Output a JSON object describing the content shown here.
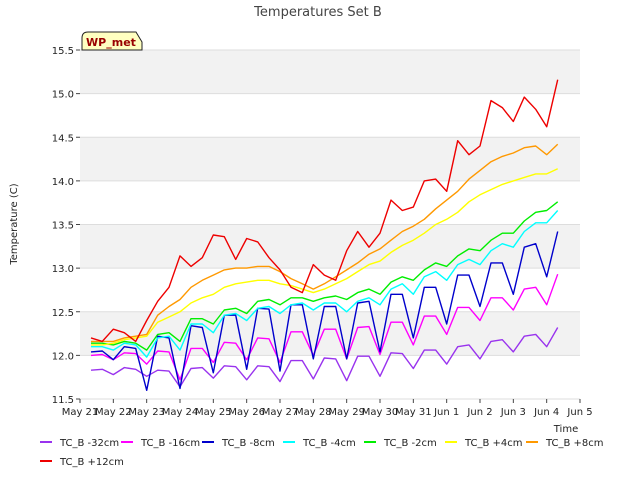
{
  "chart_data": {
    "type": "line",
    "title": "Temperatures Set B",
    "xlabel": "Time",
    "ylabel": "Temperature (C)",
    "badge": "WP_met",
    "ylim": [
      11.5,
      15.5
    ],
    "yticks": [
      11.5,
      12.0,
      12.5,
      13.0,
      13.5,
      14.0,
      14.5,
      15.0,
      15.5
    ],
    "xlim": [
      0,
      15
    ],
    "xticks": [
      {
        "pos": 0,
        "label": "May 21"
      },
      {
        "pos": 1,
        "label": "May 22"
      },
      {
        "pos": 2,
        "label": "May 23"
      },
      {
        "pos": 3,
        "label": "May 24"
      },
      {
        "pos": 4,
        "label": "May 25"
      },
      {
        "pos": 5,
        "label": "May 26"
      },
      {
        "pos": 6,
        "label": "May 27"
      },
      {
        "pos": 7,
        "label": "May 28"
      },
      {
        "pos": 8,
        "label": "May 29"
      },
      {
        "pos": 9,
        "label": "May 30"
      },
      {
        "pos": 10,
        "label": "May 31"
      },
      {
        "pos": 11,
        "label": "Jun 1"
      },
      {
        "pos": 12,
        "label": "Jun 2"
      },
      {
        "pos": 13,
        "label": "Jun 3"
      },
      {
        "pos": 14,
        "label": "Jun 4"
      },
      {
        "pos": 15,
        "label": "Jun 5"
      }
    ],
    "grid": true,
    "legend_position": "bottom",
    "x": [
      0.33,
      0.67,
      1.0,
      1.33,
      1.67,
      2.0,
      2.33,
      2.67,
      3.0,
      3.33,
      3.67,
      4.0,
      4.33,
      4.67,
      5.0,
      5.33,
      5.67,
      6.0,
      6.33,
      6.67,
      7.0,
      7.33,
      7.67,
      8.0,
      8.33,
      8.67,
      9.0,
      9.33,
      9.67,
      10.0,
      10.33,
      10.67,
      11.0,
      11.33,
      11.67,
      12.0,
      12.33,
      12.67,
      13.0,
      13.33,
      13.67,
      14.0,
      14.33
    ],
    "series": [
      {
        "name": "TC_B -32cm",
        "color": "#9933ee",
        "values": [
          11.83,
          11.84,
          11.78,
          11.86,
          11.84,
          11.76,
          11.83,
          11.82,
          11.64,
          11.85,
          11.86,
          11.74,
          11.88,
          11.87,
          11.72,
          11.88,
          11.87,
          11.7,
          11.94,
          11.94,
          11.73,
          11.97,
          11.96,
          11.71,
          11.99,
          11.99,
          11.76,
          12.03,
          12.02,
          11.85,
          12.06,
          12.06,
          11.9,
          12.1,
          12.12,
          11.96,
          12.16,
          12.18,
          12.04,
          12.22,
          12.24,
          12.1,
          12.32
        ]
      },
      {
        "name": "TC_B -16cm",
        "color": "#ff00ff",
        "values": [
          12.0,
          12.01,
          11.95,
          12.03,
          12.02,
          11.9,
          12.05,
          12.04,
          11.72,
          12.08,
          12.08,
          11.92,
          12.15,
          12.14,
          11.95,
          12.2,
          12.19,
          11.92,
          12.27,
          12.27,
          12.0,
          12.3,
          12.3,
          11.96,
          12.32,
          12.33,
          12.01,
          12.38,
          12.38,
          12.12,
          12.45,
          12.45,
          12.24,
          12.55,
          12.55,
          12.4,
          12.66,
          12.66,
          12.52,
          12.76,
          12.78,
          12.58,
          12.93
        ]
      },
      {
        "name": "TC_B -8cm",
        "color": "#0000cc",
        "values": [
          12.04,
          12.05,
          11.95,
          12.1,
          12.08,
          11.6,
          12.22,
          12.2,
          11.62,
          12.34,
          12.32,
          11.8,
          12.46,
          12.46,
          11.84,
          12.54,
          12.53,
          11.82,
          12.58,
          12.58,
          11.96,
          12.56,
          12.56,
          11.96,
          12.6,
          12.62,
          12.04,
          12.7,
          12.7,
          12.2,
          12.78,
          12.78,
          12.36,
          12.92,
          12.92,
          12.56,
          13.06,
          13.06,
          12.7,
          13.24,
          13.28,
          12.9,
          13.42
        ]
      },
      {
        "name": "TC_B -4cm",
        "color": "#00ffff",
        "values": [
          12.1,
          12.1,
          12.06,
          12.14,
          12.12,
          11.98,
          12.2,
          12.22,
          12.06,
          12.36,
          12.36,
          12.26,
          12.46,
          12.48,
          12.4,
          12.54,
          12.56,
          12.48,
          12.58,
          12.6,
          12.52,
          12.6,
          12.6,
          12.5,
          12.62,
          12.66,
          12.58,
          12.76,
          12.82,
          12.7,
          12.9,
          12.96,
          12.86,
          13.04,
          13.1,
          13.04,
          13.2,
          13.28,
          13.24,
          13.42,
          13.52,
          13.52,
          13.66
        ]
      },
      {
        "name": "TC_B -2cm",
        "color": "#00ee00",
        "values": [
          12.14,
          12.14,
          12.12,
          12.16,
          12.14,
          12.06,
          12.24,
          12.26,
          12.16,
          12.42,
          12.42,
          12.36,
          12.52,
          12.54,
          12.48,
          12.62,
          12.64,
          12.58,
          12.66,
          12.66,
          12.62,
          12.66,
          12.68,
          12.64,
          12.72,
          12.76,
          12.7,
          12.84,
          12.9,
          12.86,
          12.98,
          13.06,
          13.02,
          13.14,
          13.22,
          13.2,
          13.32,
          13.4,
          13.4,
          13.54,
          13.64,
          13.66,
          13.76
        ]
      },
      {
        "name": "TC_B +4cm",
        "color": "#ffff00",
        "values": [
          12.12,
          12.12,
          12.14,
          12.18,
          12.2,
          12.22,
          12.38,
          12.44,
          12.5,
          12.6,
          12.66,
          12.7,
          12.78,
          12.82,
          12.84,
          12.86,
          12.86,
          12.82,
          12.8,
          12.76,
          12.72,
          12.76,
          12.82,
          12.88,
          12.96,
          13.04,
          13.08,
          13.18,
          13.26,
          13.32,
          13.4,
          13.5,
          13.56,
          13.64,
          13.76,
          13.84,
          13.9,
          13.96,
          14.0,
          14.04,
          14.08,
          14.08,
          14.14
        ]
      },
      {
        "name": "TC_B +8cm",
        "color": "#ff9900",
        "values": [
          12.16,
          12.16,
          12.16,
          12.2,
          12.22,
          12.24,
          12.46,
          12.56,
          12.64,
          12.78,
          12.86,
          12.92,
          12.98,
          13.0,
          13.0,
          13.02,
          13.02,
          12.96,
          12.88,
          12.82,
          12.76,
          12.82,
          12.9,
          12.98,
          13.06,
          13.16,
          13.22,
          13.32,
          13.42,
          13.48,
          13.56,
          13.68,
          13.78,
          13.88,
          14.02,
          14.12,
          14.22,
          14.28,
          14.32,
          14.38,
          14.4,
          14.3,
          14.42
        ]
      },
      {
        "name": "TC_B +12cm",
        "color": "#ee0000",
        "values": [
          12.2,
          12.16,
          12.3,
          12.26,
          12.16,
          12.4,
          12.62,
          12.78,
          13.14,
          13.02,
          13.12,
          13.38,
          13.36,
          13.1,
          13.34,
          13.3,
          13.12,
          12.98,
          12.78,
          12.72,
          13.04,
          12.92,
          12.86,
          13.2,
          13.42,
          13.24,
          13.4,
          13.78,
          13.66,
          13.7,
          14.0,
          14.02,
          13.88,
          14.46,
          14.3,
          14.4,
          14.92,
          14.84,
          14.68,
          14.96,
          14.82,
          14.62,
          15.16
        ]
      }
    ]
  }
}
